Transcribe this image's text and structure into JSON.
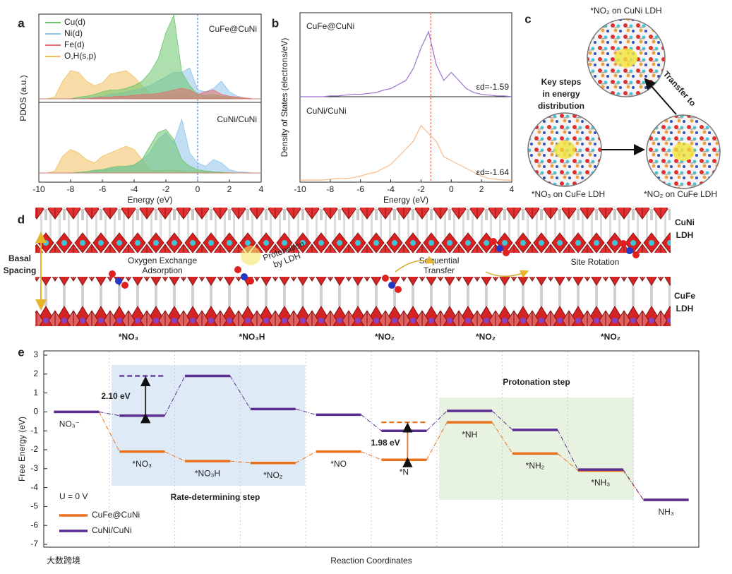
{
  "panel_labels": [
    "a",
    "b",
    "c",
    "d",
    "e"
  ],
  "chart_data": [
    {
      "type": "area",
      "xlabel": "Energy (eV)",
      "ylabel": "PDOS (a.u.)",
      "xlim": [
        -10,
        4
      ],
      "xticks": [
        -10,
        -8,
        -6,
        -4,
        -2,
        0,
        2,
        4
      ],
      "ylim": [
        0,
        1
      ],
      "reference_line": {
        "x": 0,
        "color": "#3a7bd5"
      },
      "subplot_labels": [
        "CuFe@CuNi",
        "CuNi/CuNi"
      ],
      "x": [
        -10,
        -9.5,
        -9,
        -8.5,
        -8,
        -7.5,
        -7,
        -6.5,
        -6,
        -5.5,
        -5,
        -4.5,
        -4,
        -3.5,
        -3,
        -2.5,
        -2,
        -1.5,
        -1,
        -0.5,
        0,
        0.5,
        1,
        1.5,
        2,
        2.5,
        3,
        3.5,
        4
      ],
      "series": [
        {
          "name": "Cu(d)",
          "color": "#6cc46c",
          "values": [
            [
              0,
              0,
              0,
              0,
              0,
              0.02,
              0.03,
              0.05,
              0.08,
              0.1,
              0.1,
              0.12,
              0.15,
              0.2,
              0.3,
              0.45,
              0.75,
              0.95,
              0.3,
              0.15,
              0.05,
              0.04,
              0.05,
              0.03,
              0.02,
              0.01,
              0,
              0,
              0
            ],
            [
              0,
              0,
              0,
              0,
              0,
              0.01,
              0.02,
              0.04,
              0.05,
              0.08,
              0.1,
              0.1,
              0.12,
              0.2,
              0.4,
              0.6,
              0.65,
              0.5,
              0.2,
              0.1,
              0.05,
              0.03,
              0.02,
              0.01,
              0,
              0,
              0,
              0,
              0
            ]
          ]
        },
        {
          "name": "Ni(d)",
          "color": "#8fc3e8",
          "values": [
            [
              0,
              0,
              0,
              0,
              0,
              0,
              0.01,
              0.02,
              0.03,
              0.05,
              0.06,
              0.08,
              0.1,
              0.12,
              0.15,
              0.2,
              0.25,
              0.3,
              0.3,
              0.35,
              0.1,
              0.08,
              0.12,
              0.2,
              0.08,
              0.03,
              0.01,
              0,
              0
            ],
            [
              0,
              0,
              0,
              0,
              0,
              0.01,
              0.02,
              0.03,
              0.05,
              0.06,
              0.08,
              0.1,
              0.12,
              0.2,
              0.3,
              0.5,
              0.6,
              0.45,
              0.8,
              0.3,
              0.15,
              0.1,
              0.2,
              0.15,
              0.05,
              0.02,
              0.01,
              0,
              0
            ]
          ]
        },
        {
          "name": "Fe(d)",
          "color": "#e86b6b",
          "values": [
            [
              0,
              0,
              0,
              0,
              0,
              0,
              0,
              0.01,
              0.02,
              0.02,
              0.03,
              0.03,
              0.04,
              0.05,
              0.05,
              0.06,
              0.08,
              0.1,
              0.12,
              0.1,
              0.05,
              0.08,
              0.1,
              0.05,
              0.03,
              0.02,
              0.01,
              0,
              0
            ],
            [
              0,
              0,
              0,
              0,
              0,
              0,
              0,
              0,
              0,
              0,
              0,
              0,
              0,
              0,
              0,
              0,
              0,
              0,
              0,
              0,
              0,
              0,
              0,
              0,
              0,
              0,
              0,
              0,
              0
            ]
          ]
        },
        {
          "name": "O,H(s,p)",
          "color": "#f0c060",
          "values": [
            [
              0,
              0,
              0.02,
              0.2,
              0.32,
              0.3,
              0.2,
              0.15,
              0.18,
              0.28,
              0.3,
              0.32,
              0.25,
              0.15,
              0.05,
              0.03,
              0.05,
              0.05,
              0.04,
              0.03,
              0.02,
              0.02,
              0.02,
              0.02,
              0.01,
              0.01,
              0,
              0,
              0
            ],
            [
              0,
              0,
              0.03,
              0.25,
              0.35,
              0.3,
              0.2,
              0.15,
              0.25,
              0.3,
              0.35,
              0.4,
              0.35,
              0.2,
              0.05,
              0.03,
              0.04,
              0.04,
              0.03,
              0.02,
              0.02,
              0.02,
              0.02,
              0.01,
              0.01,
              0,
              0,
              0,
              0
            ]
          ]
        }
      ]
    },
    {
      "type": "line",
      "xlabel": "Energy (eV)",
      "ylabel": "Density of States (electrons/eV)",
      "xlim": [
        -10,
        4
      ],
      "xticks": [
        -10,
        -8,
        -6,
        -4,
        -2,
        0,
        2,
        4
      ],
      "ylim": [
        0,
        1
      ],
      "reference_line": {
        "x": -1.35,
        "color": "#d9534f"
      },
      "x": [
        -10,
        -9.5,
        -9,
        -8.5,
        -8,
        -7.5,
        -7,
        -6.5,
        -6,
        -5.5,
        -5,
        -4.5,
        -4,
        -3.5,
        -3,
        -2.5,
        -2,
        -1.5,
        -1,
        -0.5,
        0,
        0.5,
        1,
        1.5,
        2,
        2.5,
        3,
        3.5,
        4
      ],
      "series": [
        {
          "name": "CuFe@CuNi",
          "color": "#9b72cf",
          "annotation": "εd=-1.59",
          "values": [
            0,
            0,
            0,
            0,
            0.01,
            0.01,
            0.02,
            0.03,
            0.03,
            0.04,
            0.05,
            0.08,
            0.1,
            0.15,
            0.2,
            0.35,
            0.6,
            0.8,
            0.4,
            0.2,
            0.3,
            0.2,
            0.1,
            0.05,
            0.03,
            0.02,
            0.01,
            0.01,
            0
          ]
        },
        {
          "name": "CuNi/CuNi",
          "color": "#f3b98a",
          "annotation": "εd=-1.64",
          "values": [
            0,
            0,
            0,
            0,
            0.01,
            0.02,
            0.02,
            0.03,
            0.05,
            0.08,
            0.1,
            0.15,
            0.2,
            0.3,
            0.4,
            0.5,
            0.7,
            0.6,
            0.5,
            0.3,
            0.25,
            0.2,
            0.15,
            0.1,
            0.05,
            0.02,
            0.01,
            0,
            0
          ]
        }
      ]
    },
    {
      "type": "energy_levels",
      "xlabel": "Reaction Coordinates",
      "ylabel": "Free Energy (eV)",
      "ylim": [
        -7,
        3
      ],
      "yticks": [
        -7,
        -6,
        -5,
        -4,
        -3,
        -2,
        -1,
        0,
        1,
        2,
        3
      ],
      "categories": [
        "NO₃⁻",
        "*NO₃",
        "*NO₃H",
        "*NO₂",
        "*NO",
        "*N",
        "*NH",
        "*NH₂",
        "*NH₃",
        "NH₃"
      ],
      "series": [
        {
          "name": "CuFe@CuNi",
          "color": "#e8711e",
          "values": [
            0,
            -2.1,
            -2.6,
            -2.7,
            -2.1,
            -2.53,
            -0.55,
            -2.2,
            -3.1,
            -4.65
          ]
        },
        {
          "name": "CuNi/CuNi",
          "color": "#5a2d91",
          "values": [
            0,
            -0.2,
            1.9,
            0.15,
            -0.15,
            -1.0,
            0.05,
            -0.95,
            -3.05,
            -4.65
          ]
        }
      ],
      "annotations": [
        "2.10 eV",
        "1.98 eV"
      ],
      "regions": [
        "Rate-determining step",
        "Protonation step"
      ],
      "condition": "U = 0 V"
    }
  ],
  "panel_c": {
    "top": "*NO₂ on CuNi LDH",
    "key": [
      "Key steps",
      "in energy",
      "distribution"
    ],
    "arrow": "Transfer to",
    "left": "*NO₃ on CuFe LDH",
    "right": "*NO₂ on CuFe LDH"
  },
  "panel_d": {
    "top_layer": [
      "CuNi",
      "LDH"
    ],
    "bottom_layer": [
      "CuFe",
      "LDH"
    ],
    "spacing": [
      "Basal",
      "Spacing"
    ],
    "steps": [
      [
        "Oxygen Exchange",
        "Adsorption"
      ],
      [
        "Protonation",
        "by LDH"
      ],
      [
        "Sequential",
        "Transfer"
      ],
      [
        "Site Rotation"
      ]
    ],
    "species": [
      "*NO₃",
      "*NO₃H",
      "*NO₂",
      "*NO₂",
      "*NO₂"
    ]
  },
  "watermark": "大数跨境"
}
